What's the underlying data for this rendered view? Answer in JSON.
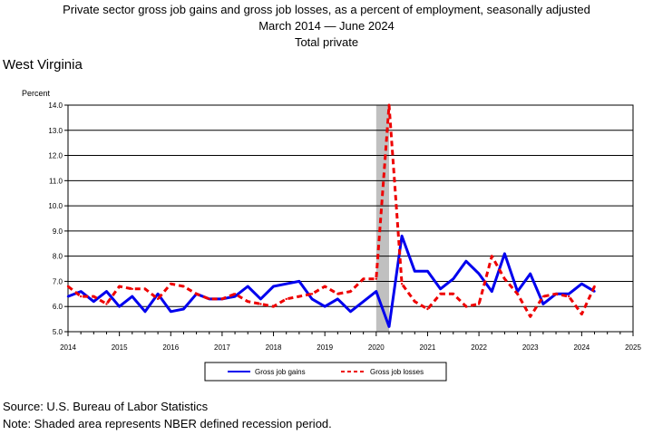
{
  "chart_data": {
    "type": "line",
    "title": "Private sector gross job gains and gross job losses, as a percent of employment, seasonally adjusted",
    "subtitle": "March 2014 — June 2024",
    "series_label": "Total private",
    "region": "West Virginia",
    "ylabel": "Percent",
    "ylim": [
      5.0,
      14.0
    ],
    "yticks": [
      "5.0",
      "6.0",
      "7.0",
      "8.0",
      "9.0",
      "10.0",
      "11.0",
      "12.0",
      "13.0",
      "14.0"
    ],
    "xlim": [
      2014,
      2025
    ],
    "xticks": [
      "2014",
      "2015",
      "2016",
      "2017",
      "2018",
      "2019",
      "2020",
      "2021",
      "2022",
      "2023",
      "2024",
      "2025"
    ],
    "grid": "horizontal",
    "recession_shading": [
      2020.0,
      2020.25
    ],
    "legend_position": "bottom",
    "x": [
      2014.0,
      2014.25,
      2014.5,
      2014.75,
      2015.0,
      2015.25,
      2015.5,
      2015.75,
      2016.0,
      2016.25,
      2016.5,
      2016.75,
      2017.0,
      2017.25,
      2017.5,
      2017.75,
      2018.0,
      2018.25,
      2018.5,
      2018.75,
      2019.0,
      2019.25,
      2019.5,
      2019.75,
      2020.0,
      2020.25,
      2020.5,
      2020.75,
      2021.0,
      2021.25,
      2021.5,
      2021.75,
      2022.0,
      2022.25,
      2022.5,
      2022.75,
      2023.0,
      2023.25,
      2023.5,
      2023.75,
      2024.0,
      2024.25
    ],
    "series": [
      {
        "name": "Gross job gains",
        "color": "#0000ee",
        "style": "solid",
        "values": [
          6.4,
          6.6,
          6.2,
          6.6,
          6.0,
          6.4,
          5.8,
          6.5,
          5.8,
          5.9,
          6.5,
          6.3,
          6.3,
          6.4,
          6.8,
          6.3,
          6.8,
          6.9,
          7.0,
          6.3,
          6.0,
          6.3,
          5.8,
          6.2,
          6.6,
          5.2,
          8.8,
          7.4,
          7.4,
          6.7,
          7.1,
          7.8,
          7.3,
          6.6,
          8.1,
          6.6,
          7.3,
          6.1,
          6.5,
          6.5,
          6.9,
          6.6
        ]
      },
      {
        "name": "Gross job losses",
        "color": "#ee0000",
        "style": "dashed",
        "values": [
          6.8,
          6.4,
          6.4,
          6.1,
          6.8,
          6.7,
          6.7,
          6.3,
          6.9,
          6.8,
          6.5,
          6.3,
          6.3,
          6.5,
          6.2,
          6.1,
          6.0,
          6.3,
          6.4,
          6.5,
          6.8,
          6.5,
          6.6,
          7.1,
          7.1,
          14.0,
          6.9,
          6.2,
          5.9,
          6.5,
          6.5,
          6.0,
          6.1,
          8.0,
          7.1,
          6.5,
          5.6,
          6.4,
          6.5,
          6.4,
          5.7,
          6.8
        ]
      }
    ]
  },
  "footer": {
    "source": "Source: U.S. Bureau of Labor Statistics",
    "note": "Note: Shaded area represents NBER defined recession period."
  },
  "colors": {
    "recession": "#c0c0c0",
    "gains": "#0000ee",
    "losses": "#ee0000"
  }
}
